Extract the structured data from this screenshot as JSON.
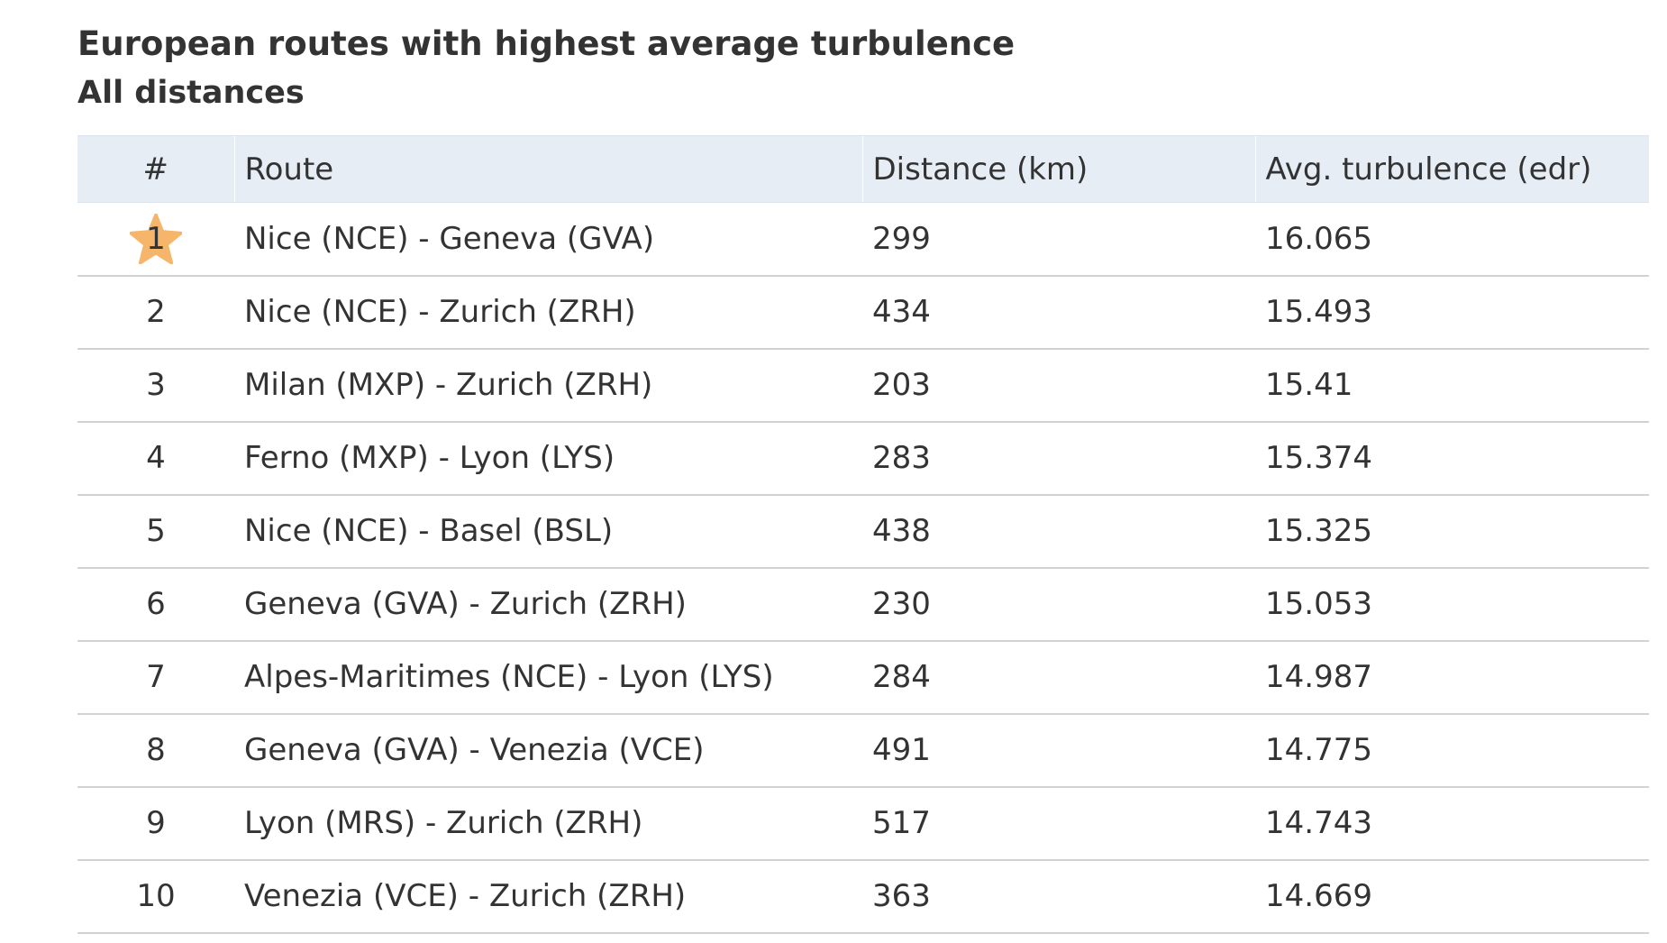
{
  "header": {
    "title": "European routes with highest average turbulence",
    "subtitle": "All distances"
  },
  "colors": {
    "header_bg": "#e6edf5",
    "star": "#f5b56b",
    "row_border": "#d2d2d2",
    "text": "#333333"
  },
  "chart_data": {
    "type": "table",
    "title": "European routes with highest average turbulence",
    "subtitle": "All distances",
    "columns": [
      "#",
      "Route",
      "Distance (km)",
      "Avg. turbulence (edr)"
    ],
    "rows": [
      {
        "rank": "1",
        "route": "Nice (NCE) - Geneva (GVA)",
        "distance": "299",
        "turbulence": "16.065",
        "highlight_icon": "star-icon"
      },
      {
        "rank": "2",
        "route": "Nice (NCE) - Zurich (ZRH)",
        "distance": "434",
        "turbulence": "15.493"
      },
      {
        "rank": "3",
        "route": "Milan (MXP) - Zurich (ZRH)",
        "distance": "203",
        "turbulence": "15.41"
      },
      {
        "rank": "4",
        "route": "Ferno (MXP) - Lyon (LYS)",
        "distance": "283",
        "turbulence": "15.374"
      },
      {
        "rank": "5",
        "route": "Nice (NCE) - Basel (BSL)",
        "distance": "438",
        "turbulence": "15.325"
      },
      {
        "rank": "6",
        "route": "Geneva (GVA) - Zurich (ZRH)",
        "distance": "230",
        "turbulence": "15.053"
      },
      {
        "rank": "7",
        "route": "Alpes-Maritimes (NCE) - Lyon (LYS)",
        "distance": "284",
        "turbulence": "14.987"
      },
      {
        "rank": "8",
        "route": "Geneva (GVA) - Venezia (VCE)",
        "distance": "491",
        "turbulence": "14.775"
      },
      {
        "rank": "9",
        "route": "Lyon (MRS) - Zurich (ZRH)",
        "distance": "517",
        "turbulence": "14.743"
      },
      {
        "rank": "10",
        "route": "Venezia (VCE) - Zurich (ZRH)",
        "distance": "363",
        "turbulence": "14.669"
      }
    ]
  }
}
